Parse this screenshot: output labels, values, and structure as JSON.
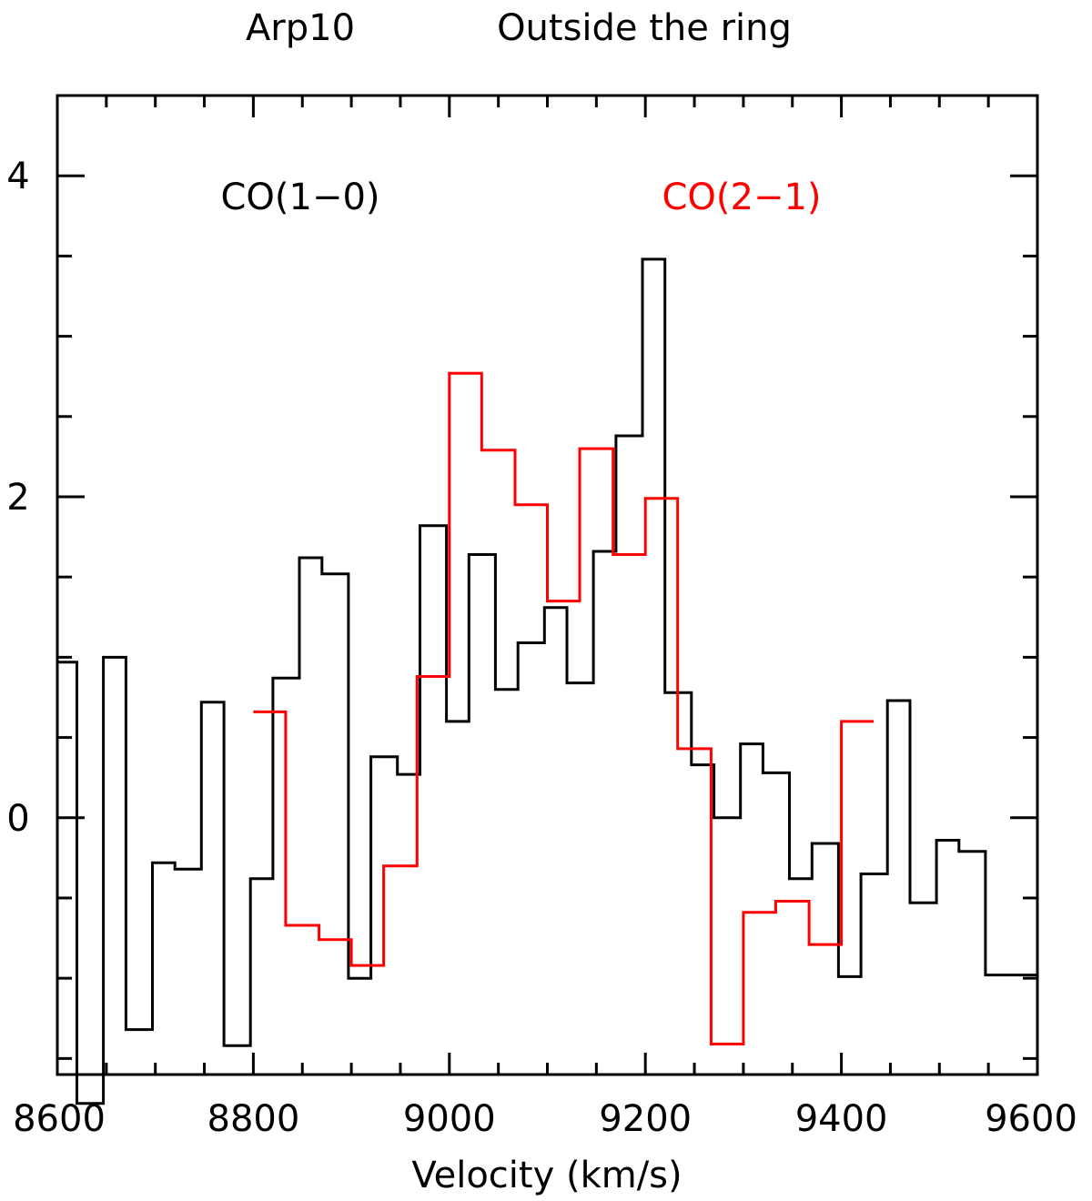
{
  "chart_data": {
    "type": "line",
    "title_left": "Arp10",
    "title_right": "Outside the ring",
    "xlabel": "Velocity (km/s)",
    "ylabel": "",
    "xlim": [
      8600,
      9600
    ],
    "ylim": [
      -1.6,
      4.5
    ],
    "x_ticks": [
      8600,
      8800,
      9000,
      9200,
      9400,
      9600
    ],
    "x_tick_labels": [
      "8600",
      "8800",
      "9000",
      "9200",
      "9400",
      "9600"
    ],
    "y_ticks": [
      0,
      2,
      4
    ],
    "y_tick_labels": [
      "0",
      "2",
      "4"
    ],
    "grid": false,
    "series": [
      {
        "name": "CO(1−0)",
        "color": "#000000",
        "step_edges": [
          8600,
          8620,
          8647,
          8670,
          8697,
          8720,
          8747,
          8770,
          8797,
          8820,
          8847,
          8870,
          8897,
          8920,
          8947,
          8970,
          8997,
          9020,
          9047,
          9070,
          9097,
          9120,
          9147,
          9170,
          9197,
          9220,
          9247,
          9270,
          9297,
          9320,
          9347,
          9370,
          9397,
          9420,
          9447,
          9470,
          9497,
          9520,
          9547,
          9570,
          9600
        ],
        "values": [
          0.97,
          -1.78,
          1.0,
          -1.32,
          -0.28,
          -0.32,
          0.72,
          -1.42,
          -0.38,
          0.87,
          1.62,
          1.52,
          -1.0,
          0.38,
          0.27,
          1.82,
          0.6,
          1.64,
          0.8,
          1.09,
          1.31,
          0.84,
          1.66,
          2.38,
          3.48,
          0.78,
          0.33,
          0.0,
          0.46,
          0.28,
          -0.38,
          -0.16,
          -0.99,
          -0.35,
          0.73,
          -0.53,
          -0.14,
          -0.21,
          -0.98,
          -0.98
        ]
      },
      {
        "name": "CO(2−1)",
        "color": "#ff0000",
        "step_edges": [
          8800,
          8833,
          8867,
          8900,
          8933,
          8967,
          9000,
          9033,
          9067,
          9100,
          9133,
          9167,
          9200,
          9233,
          9267,
          9300,
          9333,
          9367,
          9400,
          9433
        ],
        "values": [
          0.66,
          -0.67,
          -0.76,
          -0.92,
          -0.3,
          0.88,
          2.77,
          2.29,
          1.95,
          1.35,
          2.3,
          1.64,
          1.99,
          0.43,
          -1.41,
          -0.59,
          -0.52,
          -0.79,
          0.6
        ]
      }
    ]
  }
}
